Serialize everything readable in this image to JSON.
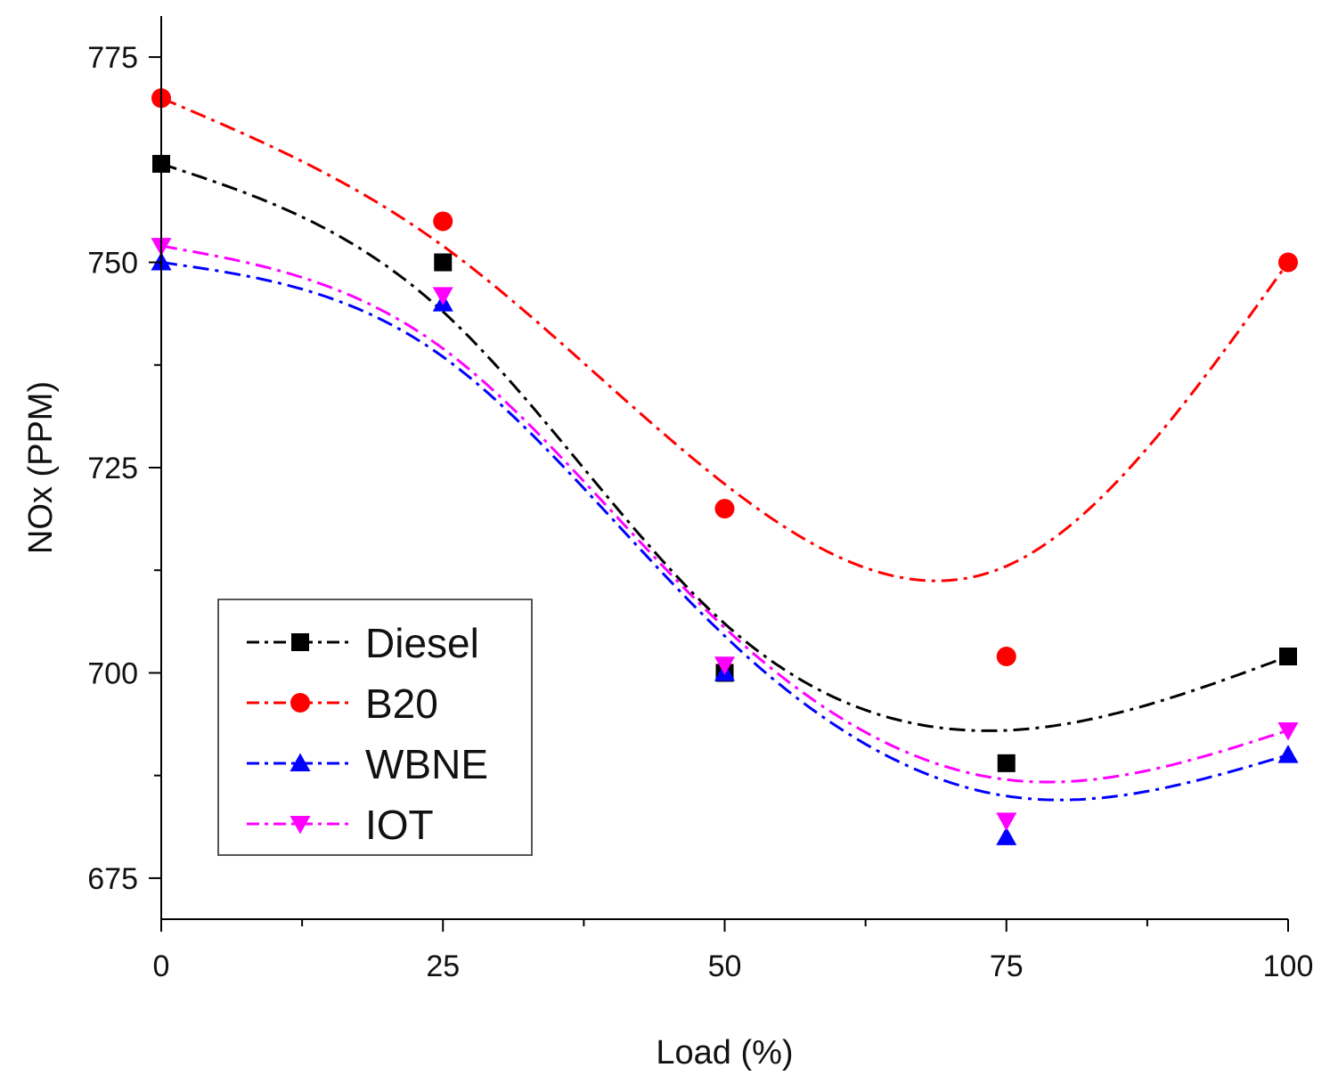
{
  "chart_data": {
    "type": "scatter",
    "xlabel": "Load (%)",
    "ylabel": "NOx (PPM)",
    "xlim": [
      0,
      100
    ],
    "ylim": [
      670,
      780
    ],
    "x_ticks": [
      0,
      25,
      50,
      75,
      100
    ],
    "y_ticks": [
      675,
      700,
      725,
      750,
      775
    ],
    "legend_position": "bottom-left",
    "x": [
      0,
      25,
      50,
      75,
      100
    ],
    "series": [
      {
        "name": "Diesel",
        "color": "#000000",
        "marker": "square",
        "values": [
          762,
          750,
          700,
          689,
          702
        ],
        "fit": [
          762,
          744,
          706,
          693,
          702
        ]
      },
      {
        "name": "B20",
        "color": "#ff0000",
        "marker": "circle",
        "values": [
          770,
          755,
          720,
          702,
          750
        ],
        "fit": [
          770,
          752,
          723,
          713,
          750
        ]
      },
      {
        "name": "WBNE",
        "color": "#0000ff",
        "marker": "triangle-up",
        "values": [
          750,
          745,
          700,
          680,
          690
        ],
        "fit": [
          750,
          738.5,
          704.5,
          685,
          690
        ]
      },
      {
        "name": "IOT",
        "color": "#ff00ff",
        "marker": "triangle-down",
        "values": [
          752,
          746,
          701,
          682,
          693
        ],
        "fit": [
          752,
          739.5,
          705.5,
          687,
          693
        ]
      }
    ]
  }
}
